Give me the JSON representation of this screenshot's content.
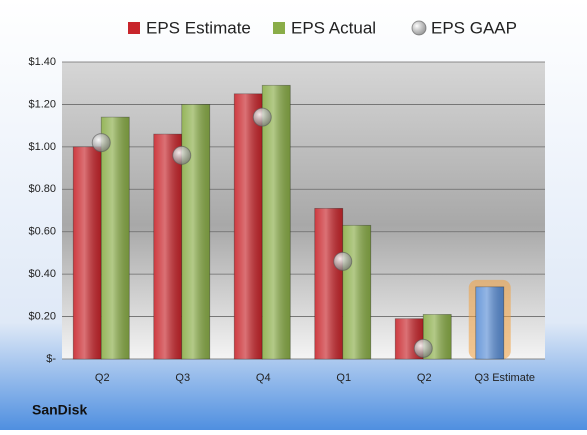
{
  "chart_data": {
    "type": "bar",
    "company": "SanDisk",
    "categories": [
      "Q2",
      "Q3",
      "Q4",
      "Q1",
      "Q2",
      "Q3 Estimate"
    ],
    "series": [
      {
        "name": "EPS Estimate",
        "color": "#c8252b",
        "kind": "bar",
        "values": [
          1.0,
          1.06,
          1.25,
          0.71,
          0.19,
          0.34
        ],
        "point_colors": [
          "#c8252b",
          "#c8252b",
          "#c8252b",
          "#c8252b",
          "#c8252b",
          "#5b8fd6"
        ]
      },
      {
        "name": "EPS Actual",
        "color": "#8aad48",
        "kind": "bar",
        "values": [
          1.14,
          1.2,
          1.29,
          0.63,
          0.21,
          null
        ]
      },
      {
        "name": "EPS GAAP",
        "color": "#9a9a9a",
        "kind": "marker",
        "values": [
          1.02,
          0.96,
          1.14,
          0.46,
          0.05,
          null
        ]
      }
    ],
    "ylim": [
      0,
      1.4
    ],
    "yticks": [
      {
        "value": 0,
        "label": "$-"
      },
      {
        "value": 0.2,
        "label": "$0.20"
      },
      {
        "value": 0.4,
        "label": "$0.40"
      },
      {
        "value": 0.6,
        "label": "$0.60"
      },
      {
        "value": 0.8,
        "label": "$0.80"
      },
      {
        "value": 1.0,
        "label": "$1.00"
      },
      {
        "value": 1.2,
        "label": "$1.20"
      },
      {
        "value": 1.4,
        "label": "$1.40"
      }
    ],
    "grid": true
  }
}
